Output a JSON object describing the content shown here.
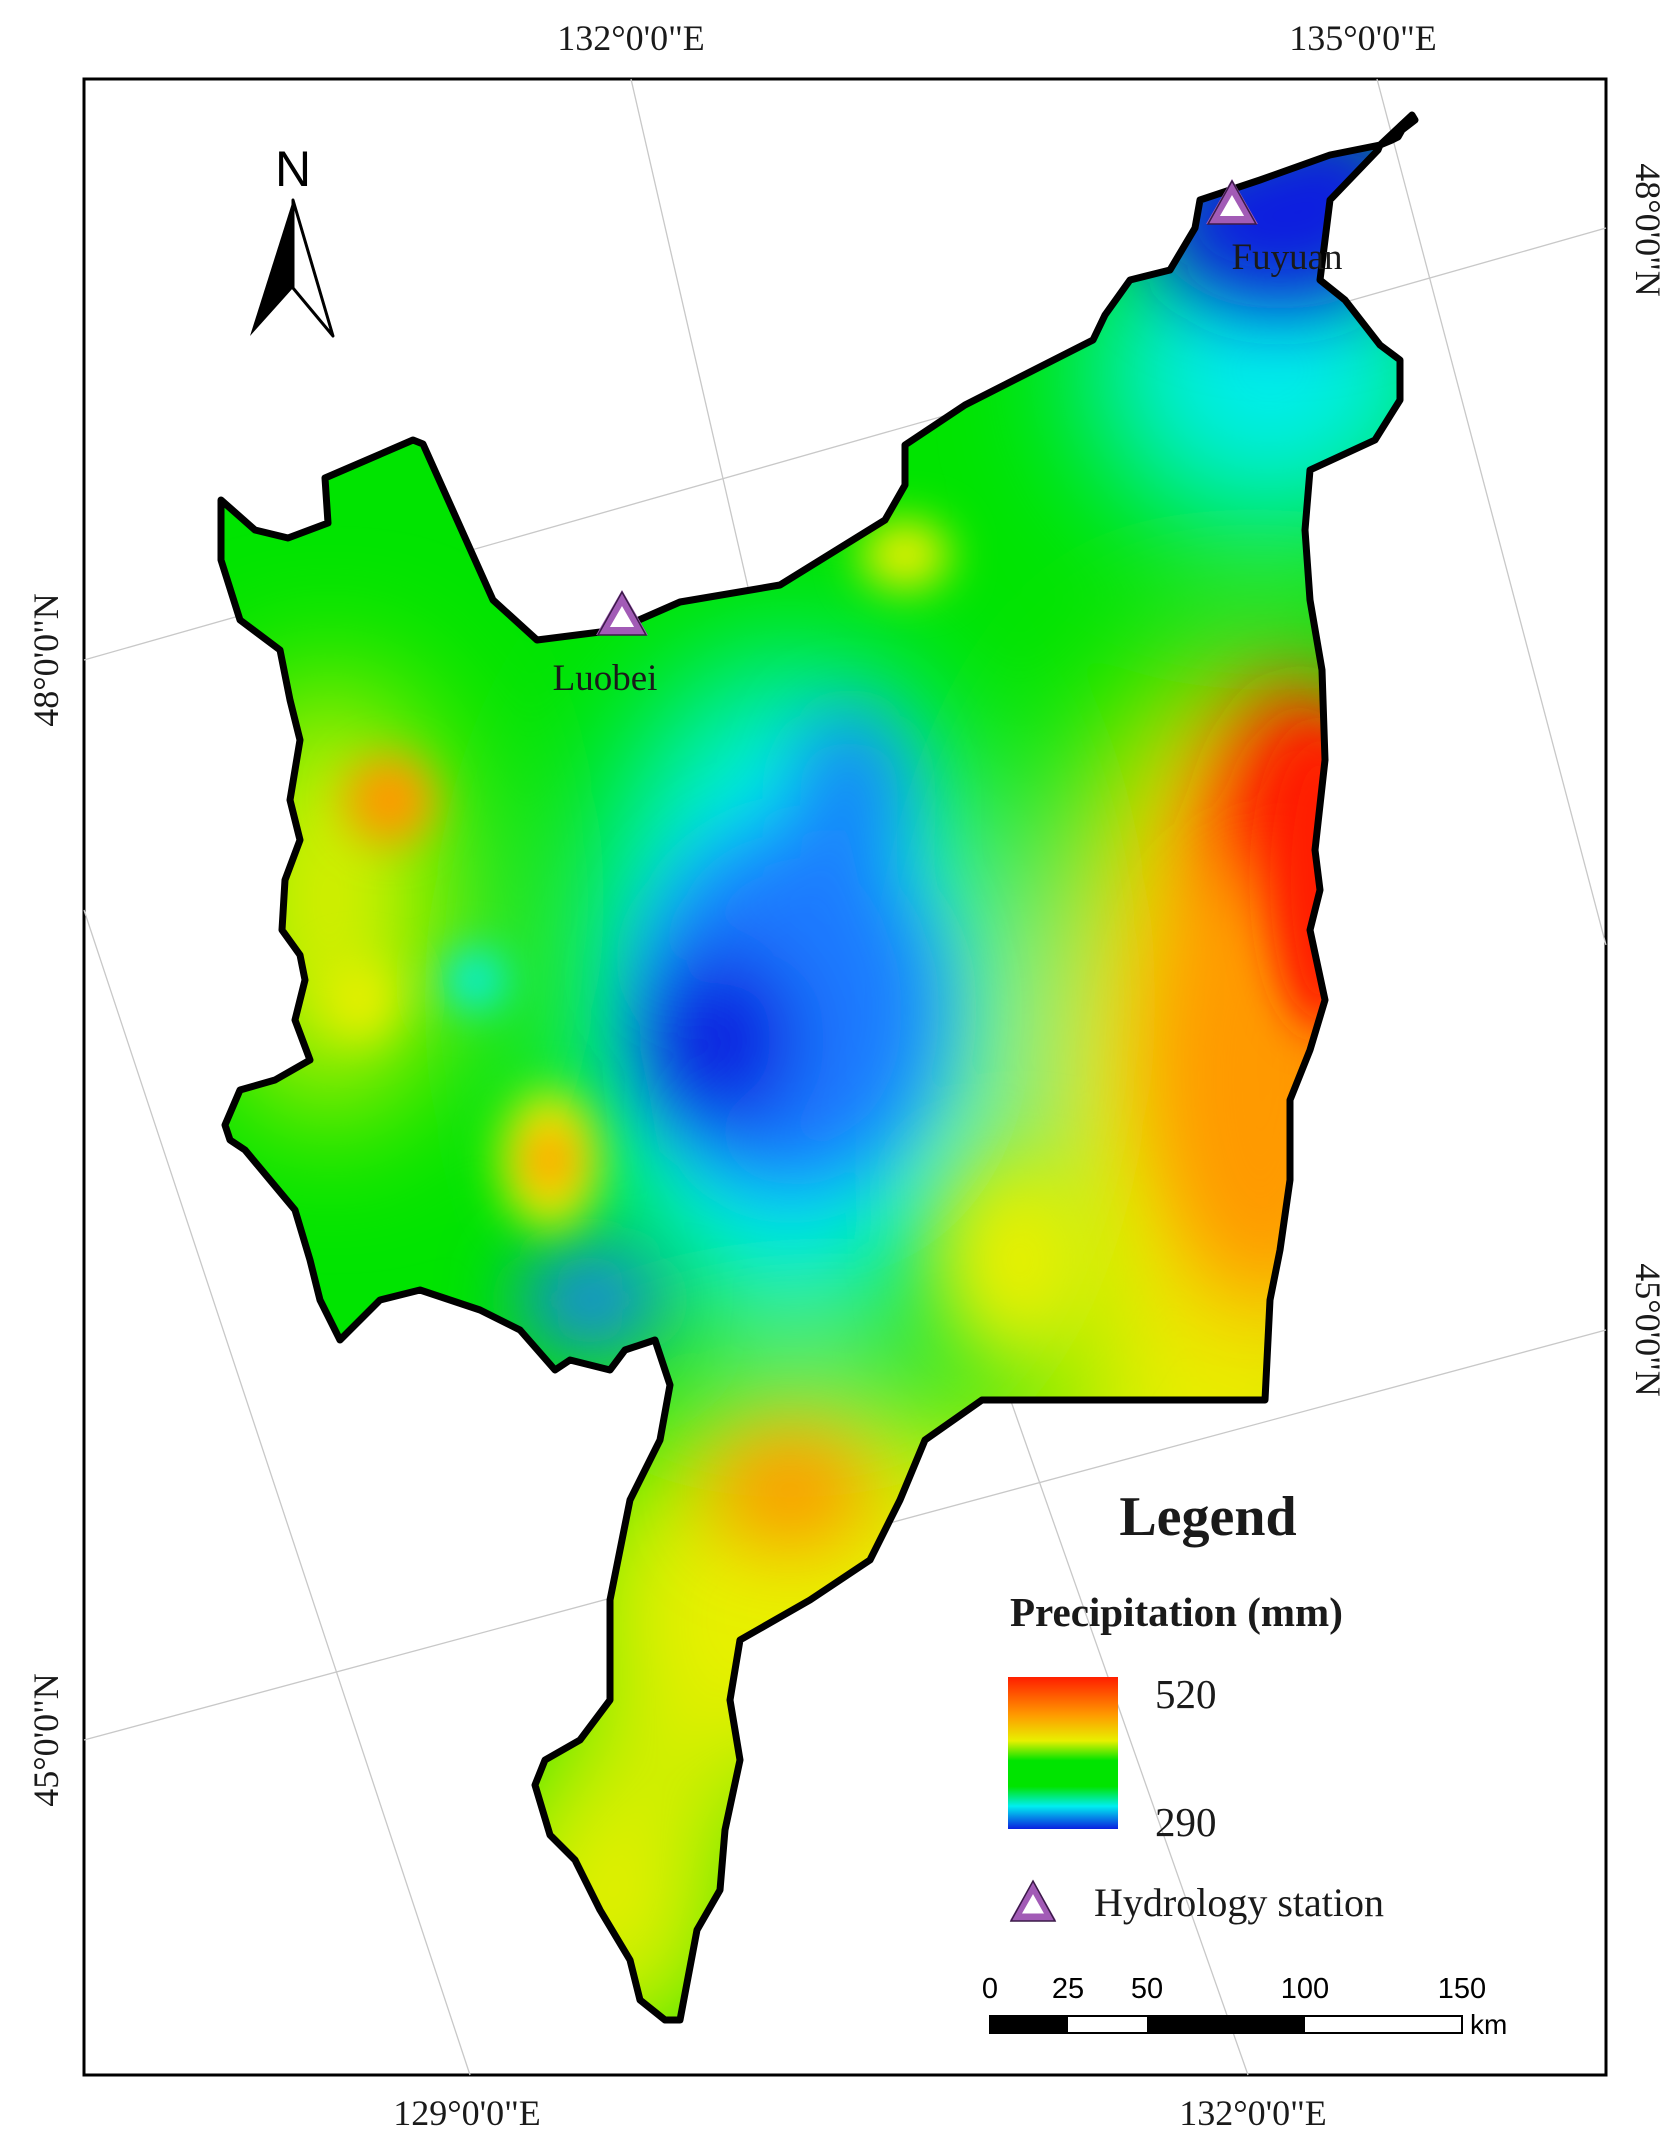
{
  "map": {
    "coordinate_labels": {
      "top_lon_1": "132°0'0\"E",
      "top_lon_2": "135°0'0\"E",
      "bottom_lon_1": "129°0'0\"E",
      "bottom_lon_2": "132°0'0\"E",
      "left_lat_1": "48°0'0\"N",
      "left_lat_2": "45°0'0\"N",
      "right_lat_1": "48°0'0\"N",
      "right_lat_2": "45°0'0\"N"
    },
    "north_arrow": {
      "label": "N"
    },
    "stations": [
      {
        "name": "Fuyuan"
      },
      {
        "name": "Luobei"
      }
    ],
    "colors": {
      "max": "#ff1e00",
      "orange": "#ff9a00",
      "yellow": "#e8f000",
      "green": "#00e400",
      "cyan": "#00eef0",
      "min": "#0a1fe0",
      "station": "#a25bb6",
      "outline": "#000000"
    }
  },
  "legend": {
    "title": "Legend",
    "subtitle": "Precipitation (mm)",
    "max_value": "520",
    "min_value": "290",
    "station_label": "Hydrology station"
  },
  "scale_bar": {
    "ticks": [
      "0",
      "25",
      "50",
      "100",
      "150"
    ],
    "unit": "km"
  }
}
